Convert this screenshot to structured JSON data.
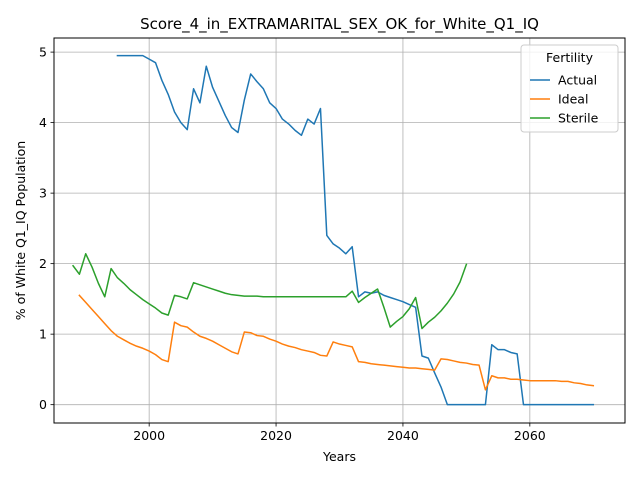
{
  "chart_data": {
    "type": "line",
    "title": "Score_4_in_EXTRAMARITAL_SEX_OK_for_White_Q1_IQ",
    "xlabel": "Years",
    "ylabel": "% of White Q1_IQ Population",
    "xlim": [
      1985,
      2075
    ],
    "ylim": [
      -0.26,
      5.2
    ],
    "x_ticks": [
      2000,
      2020,
      2040,
      2060
    ],
    "y_ticks": [
      0,
      1,
      2,
      3,
      4,
      5
    ],
    "grid": true,
    "legend": {
      "title": "Fertility",
      "position": "top-right"
    },
    "series": [
      {
        "name": "Actual",
        "color": "#1f77b4",
        "x": [
          1995,
          1996,
          1997,
          1998,
          1999,
          2000,
          2001,
          2002,
          2003,
          2004,
          2005,
          2006,
          2007,
          2008,
          2009,
          2010,
          2011,
          2012,
          2013,
          2014,
          2015,
          2016,
          2017,
          2018,
          2019,
          2020,
          2021,
          2022,
          2023,
          2024,
          2025,
          2026,
          2027,
          2028,
          2029,
          2030,
          2031,
          2032,
          2033,
          2034,
          2035,
          2036,
          2037,
          2038,
          2039,
          2040,
          2041,
          2042,
          2043,
          2044,
          2045,
          2046,
          2047,
          2048,
          2049,
          2050,
          2051,
          2052,
          2053,
          2054,
          2055,
          2056,
          2057,
          2058,
          2059,
          2060,
          2061,
          2062,
          2063,
          2064,
          2065,
          2066,
          2067,
          2068,
          2069,
          2070
        ],
        "y": [
          4.95,
          4.95,
          4.95,
          4.95,
          4.95,
          4.9,
          4.85,
          4.6,
          4.4,
          4.15,
          4.0,
          3.9,
          4.48,
          4.28,
          4.8,
          4.5,
          4.3,
          4.1,
          3.93,
          3.86,
          4.32,
          4.69,
          4.58,
          4.48,
          4.28,
          4.2,
          4.05,
          3.98,
          3.89,
          3.82,
          4.05,
          3.98,
          4.2,
          2.4,
          2.28,
          2.22,
          2.14,
          2.24,
          1.53,
          1.6,
          1.58,
          1.6,
          1.55,
          1.52,
          1.49,
          1.46,
          1.42,
          1.38,
          0.69,
          0.66,
          0.45,
          0.25,
          0.0,
          0.0,
          0.0,
          0.0,
          0.0,
          0.0,
          0.0,
          0.85,
          0.78,
          0.78,
          0.74,
          0.72,
          0.0,
          0.0,
          0.0,
          0.0,
          0.0,
          0.0,
          0.0,
          0.0,
          0.0,
          0.0,
          0.0,
          0.0
        ]
      },
      {
        "name": "Ideal",
        "color": "#ff7f0e",
        "x": [
          1989,
          1990,
          1991,
          1992,
          1993,
          1994,
          1995,
          1996,
          1997,
          1998,
          1999,
          2000,
          2001,
          2002,
          2003,
          2004,
          2005,
          2006,
          2007,
          2008,
          2009,
          2010,
          2011,
          2012,
          2013,
          2014,
          2015,
          2016,
          2017,
          2018,
          2019,
          2020,
          2021,
          2022,
          2023,
          2024,
          2025,
          2026,
          2027,
          2028,
          2029,
          2030,
          2031,
          2032,
          2033,
          2034,
          2035,
          2036,
          2037,
          2038,
          2039,
          2040,
          2041,
          2042,
          2043,
          2044,
          2045,
          2046,
          2047,
          2048,
          2049,
          2050,
          2051,
          2052,
          2053,
          2054,
          2055,
          2056,
          2057,
          2058,
          2059,
          2060,
          2061,
          2062,
          2063,
          2064,
          2065,
          2066,
          2067,
          2068,
          2069,
          2070
        ],
        "y": [
          1.55,
          1.45,
          1.35,
          1.25,
          1.15,
          1.05,
          0.97,
          0.92,
          0.87,
          0.83,
          0.8,
          0.76,
          0.71,
          0.64,
          0.61,
          1.17,
          1.12,
          1.1,
          1.03,
          0.97,
          0.94,
          0.9,
          0.85,
          0.8,
          0.75,
          0.72,
          1.03,
          1.02,
          0.98,
          0.97,
          0.93,
          0.9,
          0.86,
          0.83,
          0.81,
          0.78,
          0.76,
          0.74,
          0.7,
          0.69,
          0.89,
          0.86,
          0.84,
          0.82,
          0.61,
          0.6,
          0.58,
          0.57,
          0.56,
          0.55,
          0.54,
          0.53,
          0.52,
          0.52,
          0.51,
          0.5,
          0.49,
          0.65,
          0.64,
          0.62,
          0.6,
          0.59,
          0.57,
          0.56,
          0.21,
          0.41,
          0.38,
          0.38,
          0.36,
          0.36,
          0.35,
          0.34,
          0.34,
          0.34,
          0.34,
          0.34,
          0.33,
          0.33,
          0.31,
          0.3,
          0.28,
          0.27
        ]
      },
      {
        "name": "Sterile",
        "color": "#2ca02c",
        "x": [
          1988,
          1989,
          1990,
          1991,
          1992,
          1993,
          1994,
          1995,
          1996,
          1997,
          1998,
          1999,
          2000,
          2001,
          2002,
          2003,
          2004,
          2005,
          2006,
          2007,
          2008,
          2009,
          2010,
          2011,
          2012,
          2013,
          2014,
          2015,
          2016,
          2017,
          2018,
          2019,
          2020,
          2021,
          2022,
          2023,
          2024,
          2025,
          2026,
          2027,
          2028,
          2029,
          2030,
          2031,
          2032,
          2033,
          2034,
          2035,
          2036,
          2037,
          2038,
          2039,
          2040,
          2041,
          2042,
          2043,
          2044,
          2045,
          2046,
          2047,
          2048,
          2049,
          2050
        ],
        "y": [
          1.97,
          1.85,
          2.14,
          1.95,
          1.72,
          1.53,
          1.93,
          1.8,
          1.72,
          1.63,
          1.56,
          1.49,
          1.43,
          1.37,
          1.3,
          1.27,
          1.55,
          1.53,
          1.5,
          1.73,
          1.7,
          1.67,
          1.64,
          1.61,
          1.58,
          1.56,
          1.55,
          1.54,
          1.54,
          1.54,
          1.53,
          1.53,
          1.53,
          1.53,
          1.53,
          1.53,
          1.53,
          1.53,
          1.53,
          1.53,
          1.53,
          1.53,
          1.53,
          1.53,
          1.61,
          1.45,
          1.52,
          1.58,
          1.64,
          1.38,
          1.1,
          1.18,
          1.25,
          1.36,
          1.52,
          1.08,
          1.17,
          1.24,
          1.33,
          1.44,
          1.57,
          1.74,
          1.99
        ]
      }
    ]
  }
}
